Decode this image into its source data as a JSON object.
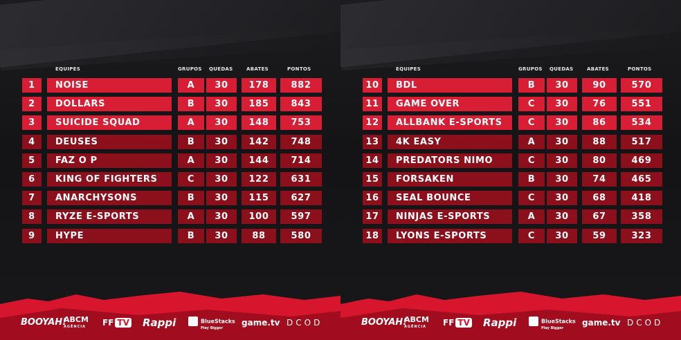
{
  "columns": {
    "team": "EQUIPES",
    "group": "GRUPOS",
    "drops": "QUEDAS",
    "kills": "ABATES",
    "points": "PONTOS"
  },
  "left_table": [
    {
      "rank": "1",
      "team": "NOISE",
      "group": "A",
      "drops": "30",
      "kills": "178",
      "points": "882"
    },
    {
      "rank": "2",
      "team": "DOLLARS",
      "group": "B",
      "drops": "30",
      "kills": "185",
      "points": "843"
    },
    {
      "rank": "3",
      "team": "SUICIDE SQUAD",
      "group": "A",
      "drops": "30",
      "kills": "148",
      "points": "753"
    },
    {
      "rank": "4",
      "team": "DEUSES",
      "group": "B",
      "drops": "30",
      "kills": "142",
      "points": "748"
    },
    {
      "rank": "5",
      "team": "FAZ O P",
      "group": "A",
      "drops": "30",
      "kills": "144",
      "points": "714"
    },
    {
      "rank": "6",
      "team": "KING OF FIGHTERS",
      "group": "C",
      "drops": "30",
      "kills": "122",
      "points": "631"
    },
    {
      "rank": "7",
      "team": "ANARCHYSONS",
      "group": "B",
      "drops": "30",
      "kills": "115",
      "points": "627"
    },
    {
      "rank": "8",
      "team": "RYZE E-SPORTS",
      "group": "A",
      "drops": "30",
      "kills": "100",
      "points": "597"
    },
    {
      "rank": "9",
      "team": "HYPE",
      "group": "B",
      "drops": "30",
      "kills": "88",
      "points": "580"
    }
  ],
  "right_table": [
    {
      "rank": "10",
      "team": "BDL",
      "group": "B",
      "drops": "30",
      "kills": "90",
      "points": "570"
    },
    {
      "rank": "11",
      "team": "GAME OVER",
      "group": "C",
      "drops": "30",
      "kills": "76",
      "points": "551"
    },
    {
      "rank": "12",
      "team": "ALLBANK E-SPORTS",
      "group": "C",
      "drops": "30",
      "kills": "86",
      "points": "534"
    },
    {
      "rank": "13",
      "team": "4K EASY",
      "group": "A",
      "drops": "30",
      "kills": "88",
      "points": "517"
    },
    {
      "rank": "14",
      "team": "PREDATORS NIMO",
      "group": "C",
      "drops": "30",
      "kills": "80",
      "points": "469"
    },
    {
      "rank": "15",
      "team": "FORSAKEN",
      "group": "B",
      "drops": "30",
      "kills": "74",
      "points": "465"
    },
    {
      "rank": "16",
      "team": "SEAL BOUNCE",
      "group": "C",
      "drops": "30",
      "kills": "68",
      "points": "418"
    },
    {
      "rank": "17",
      "team": "NINJAS E-SPORTS",
      "group": "A",
      "drops": "30",
      "kills": "67",
      "points": "358"
    },
    {
      "rank": "18",
      "team": "LYONS E-SPORTS",
      "group": "C",
      "drops": "30",
      "kills": "59",
      "points": "323"
    }
  ],
  "sponsors": {
    "booyah": "BOOYAH!",
    "abcm": "ABCM",
    "abcm_sub": "AGÊNCIA",
    "fftv_ff": "FF",
    "fftv_tv": "TV",
    "rappi": "Rappi",
    "bluestacks": "BlueStacks",
    "bluestacks_sub": "Play Bigger",
    "gametv": "game.tv",
    "dcod": "DCOD"
  },
  "colors": {
    "row_bright": "#d81e34",
    "row_dark": "#8c0f1c",
    "footer": "#d7152c",
    "background": "#141416"
  }
}
